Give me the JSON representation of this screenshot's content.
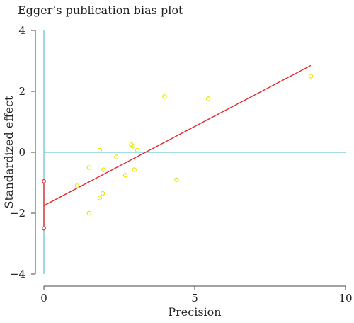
{
  "chart_data": {
    "type": "scatter",
    "title": "Egger’s publication bias plot",
    "xlabel": "Precision",
    "ylabel": "Standardized effect",
    "xlim": [
      0,
      10
    ],
    "ylim": [
      -4,
      4
    ],
    "xticks": [
      0,
      5,
      10
    ],
    "yticks": [
      -4,
      -2,
      0,
      2,
      4
    ],
    "grid": false,
    "points": [
      {
        "x": 1.1,
        "y": -1.1
      },
      {
        "x": 1.5,
        "y": -0.5
      },
      {
        "x": 1.5,
        "y": -2.0
      },
      {
        "x": 1.85,
        "y": 0.07
      },
      {
        "x": 1.85,
        "y": -1.5
      },
      {
        "x": 1.95,
        "y": -1.35
      },
      {
        "x": 1.98,
        "y": -0.57
      },
      {
        "x": 2.4,
        "y": -0.15
      },
      {
        "x": 2.7,
        "y": -0.75
      },
      {
        "x": 2.9,
        "y": 0.25
      },
      {
        "x": 2.95,
        "y": 0.2
      },
      {
        "x": 3.0,
        "y": -0.57
      },
      {
        "x": 3.1,
        "y": 0.07
      },
      {
        "x": 4.0,
        "y": 1.83
      },
      {
        "x": 4.4,
        "y": -0.9
      },
      {
        "x": 5.45,
        "y": 1.76
      },
      {
        "x": 8.85,
        "y": 2.5
      }
    ],
    "regression_line": {
      "x": [
        0,
        8.85
      ],
      "y": [
        -1.75,
        2.85
      ]
    },
    "intercept_ci": {
      "x": 0,
      "lower": -2.5,
      "upper": -0.95
    },
    "reference_lines": {
      "vertical_x": 0,
      "horizontal_y": 0
    },
    "colors": {
      "points": "#e8e800",
      "regression": "#e02020",
      "reference": "#6ec6d6",
      "axis": "#444444"
    }
  }
}
